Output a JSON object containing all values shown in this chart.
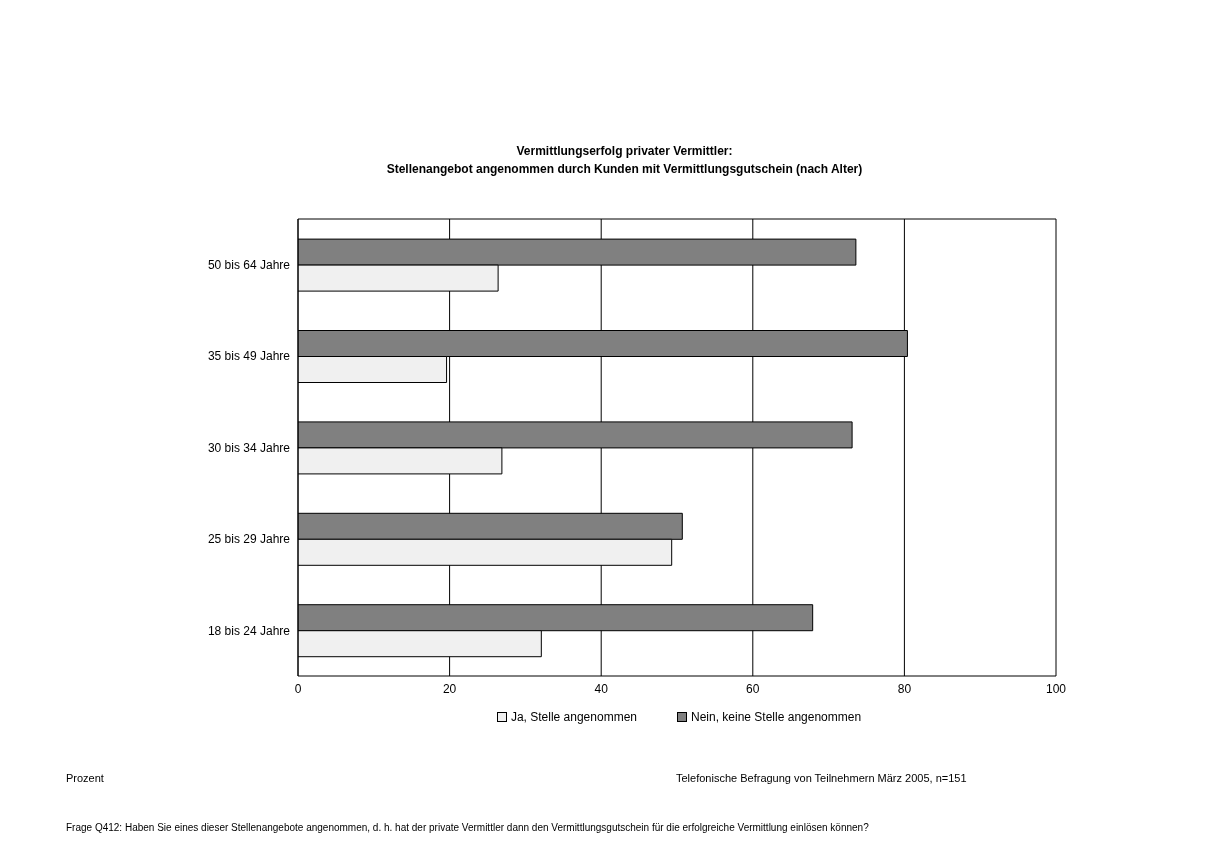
{
  "chart_data": {
    "type": "bar",
    "orientation": "horizontal",
    "title": "Vermittlungserfolg privater Vermittler:",
    "subtitle": "Stellenangebot angenommen durch Kunden mit Vermittlungsgutschein (nach Alter)",
    "categories": [
      "50 bis 64 Jahre",
      "35 bis 49 Jahre",
      "30 bis 34 Jahre",
      "25 bis 29 Jahre",
      "18 bis 24 Jahre"
    ],
    "series": [
      {
        "name": "Ja, Stelle angenommen",
        "color": "#f0f0f0",
        "values": [
          26.4,
          19.6,
          26.9,
          49.3,
          32.1
        ]
      },
      {
        "name": "Nein, keine Stelle angenommen",
        "color": "#808080",
        "values": [
          73.6,
          80.4,
          73.1,
          50.7,
          67.9
        ]
      }
    ],
    "xlim": [
      0,
      100
    ],
    "xticks": [
      0,
      20,
      40,
      60,
      80,
      100
    ],
    "grid": "x",
    "legend": "bottom",
    "annotations": [
      "Prozent",
      "Telefonische Befragung von Teilnehmern  März 2005, n=151",
      "Frage Q412: Haben Sie eines dieser Stellenangebote angenommen, d. h. hat der private Vermittler dann den Vermittlungsgutschein für die erfolgreiche Vermittlung einlösen können?"
    ]
  }
}
